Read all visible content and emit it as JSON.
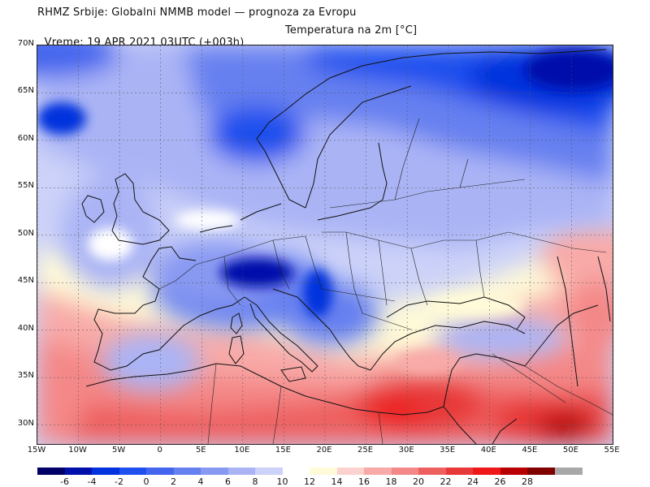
{
  "header": {
    "line1": "RHMZ Srbije: Globalni NMMB model — prognoza za Evropu",
    "line2": "Vreme: 19 APR 2021 03UTC (+003h)",
    "parameter": "Temperatura na 2m [°C]"
  },
  "map": {
    "lon_range": [
      -15,
      55
    ],
    "lat_range": [
      28,
      70
    ],
    "lat_ticks": [
      {
        "lat": 70,
        "label": "70N"
      },
      {
        "lat": 65,
        "label": "65N"
      },
      {
        "lat": 60,
        "label": "60N"
      },
      {
        "lat": 55,
        "label": "55N"
      },
      {
        "lat": 50,
        "label": "50N"
      },
      {
        "lat": 45,
        "label": "45N"
      },
      {
        "lat": 40,
        "label": "40N"
      },
      {
        "lat": 35,
        "label": "35N"
      },
      {
        "lat": 30,
        "label": "30N"
      }
    ],
    "lon_ticks": [
      {
        "lon": -15,
        "label": "15W"
      },
      {
        "lon": -10,
        "label": "10W"
      },
      {
        "lon": -5,
        "label": "5W"
      },
      {
        "lon": 0,
        "label": "0"
      },
      {
        "lon": 5,
        "label": "5E"
      },
      {
        "lon": 10,
        "label": "10E"
      },
      {
        "lon": 15,
        "label": "15E"
      },
      {
        "lon": 20,
        "label": "20E"
      },
      {
        "lon": 25,
        "label": "25E"
      },
      {
        "lon": 30,
        "label": "30E"
      },
      {
        "lon": 35,
        "label": "35E"
      },
      {
        "lon": 40,
        "label": "40E"
      },
      {
        "lon": 45,
        "label": "45E"
      },
      {
        "lon": 50,
        "label": "50E"
      },
      {
        "lon": 55,
        "label": "55E"
      }
    ]
  },
  "colorbar": {
    "bins": [
      {
        "color": "#000066"
      },
      {
        "color": "#0010aa"
      },
      {
        "color": "#0033dd"
      },
      {
        "color": "#1f4fee"
      },
      {
        "color": "#4466ee"
      },
      {
        "color": "#6680f0"
      },
      {
        "color": "#8899f2"
      },
      {
        "color": "#aab4f5"
      },
      {
        "color": "#ccd2f8"
      },
      {
        "color": "#ffffff"
      },
      {
        "color": "#fffad8"
      },
      {
        "color": "#fcd2cf"
      },
      {
        "color": "#f8aaa8"
      },
      {
        "color": "#f48888"
      },
      {
        "color": "#ee6060"
      },
      {
        "color": "#e83838"
      },
      {
        "color": "#ee1818"
      },
      {
        "color": "#b80000"
      },
      {
        "color": "#800000"
      },
      {
        "color": "#a8a8a8"
      }
    ],
    "labels": [
      "-6",
      "-4",
      "-2",
      "0",
      "2",
      "4",
      "6",
      "8",
      "10",
      "12",
      "14",
      "16",
      "18",
      "20",
      "22",
      "24",
      "26",
      "28"
    ]
  }
}
